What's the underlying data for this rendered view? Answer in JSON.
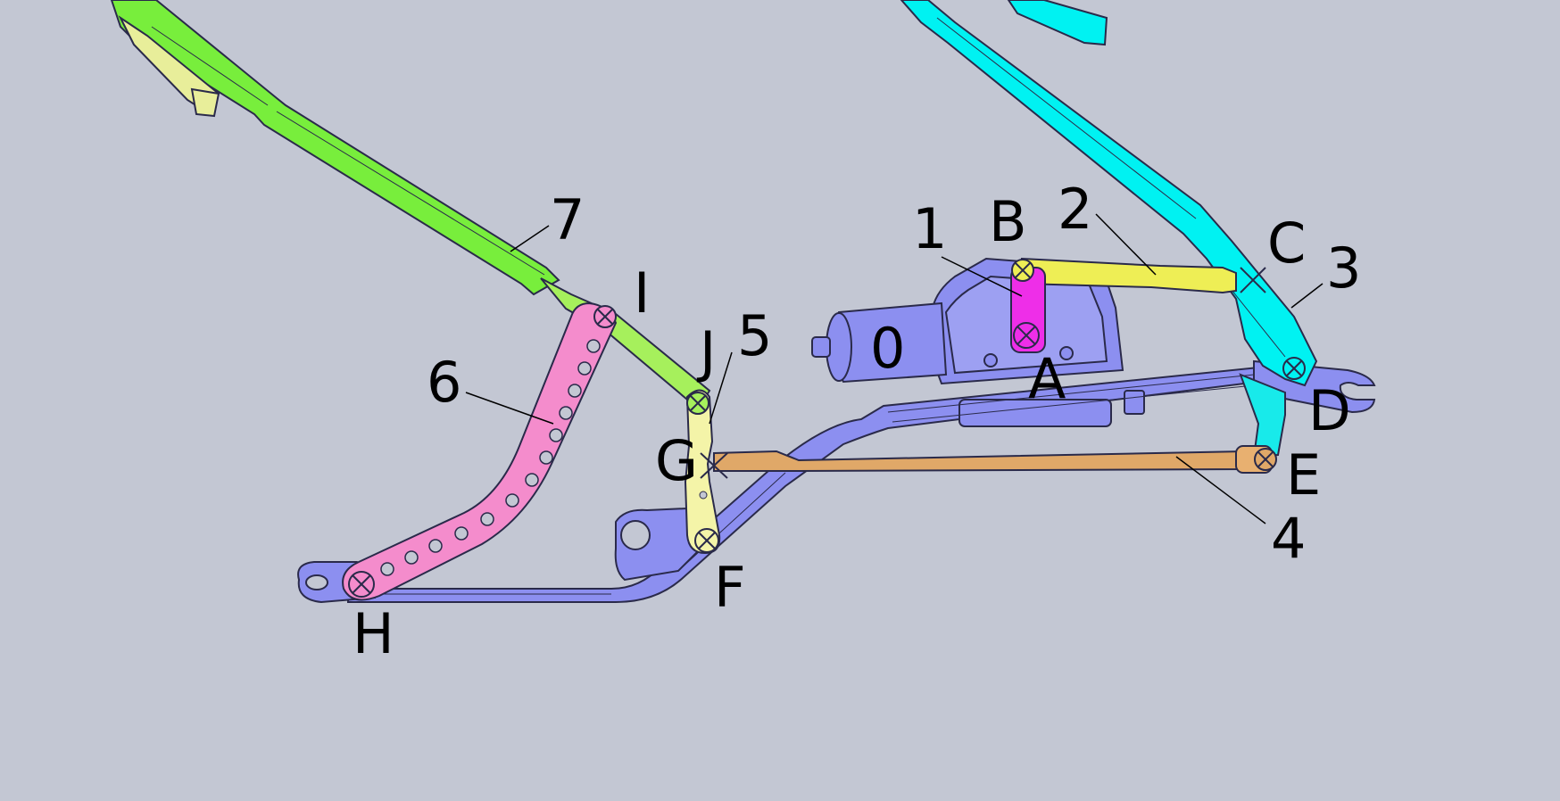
{
  "labels": {
    "link0": "0",
    "link1": "1",
    "link2": "2",
    "link3": "3",
    "link4": "4",
    "link5": "5",
    "link6": "6",
    "link7": "7",
    "jointA": "A",
    "jointB": "B",
    "jointC": "C",
    "jointD": "D",
    "jointE": "E",
    "jointF": "F",
    "jointG": "G",
    "jointH": "H",
    "jointI": "I",
    "jointJ": "J"
  },
  "colors": {
    "background": "#c3c7d3",
    "frame": "#8c8ff0",
    "crank": "#ee2ee8",
    "coupler_2": "#eeee55",
    "right_wiper_arm": "#00f2f2",
    "rod_4": "#e0a868",
    "link_5": "#f4f4a8",
    "link_6": "#f48ccc",
    "left_wiper_arm": "#78ee3c",
    "outline": "#2a2a4a"
  }
}
